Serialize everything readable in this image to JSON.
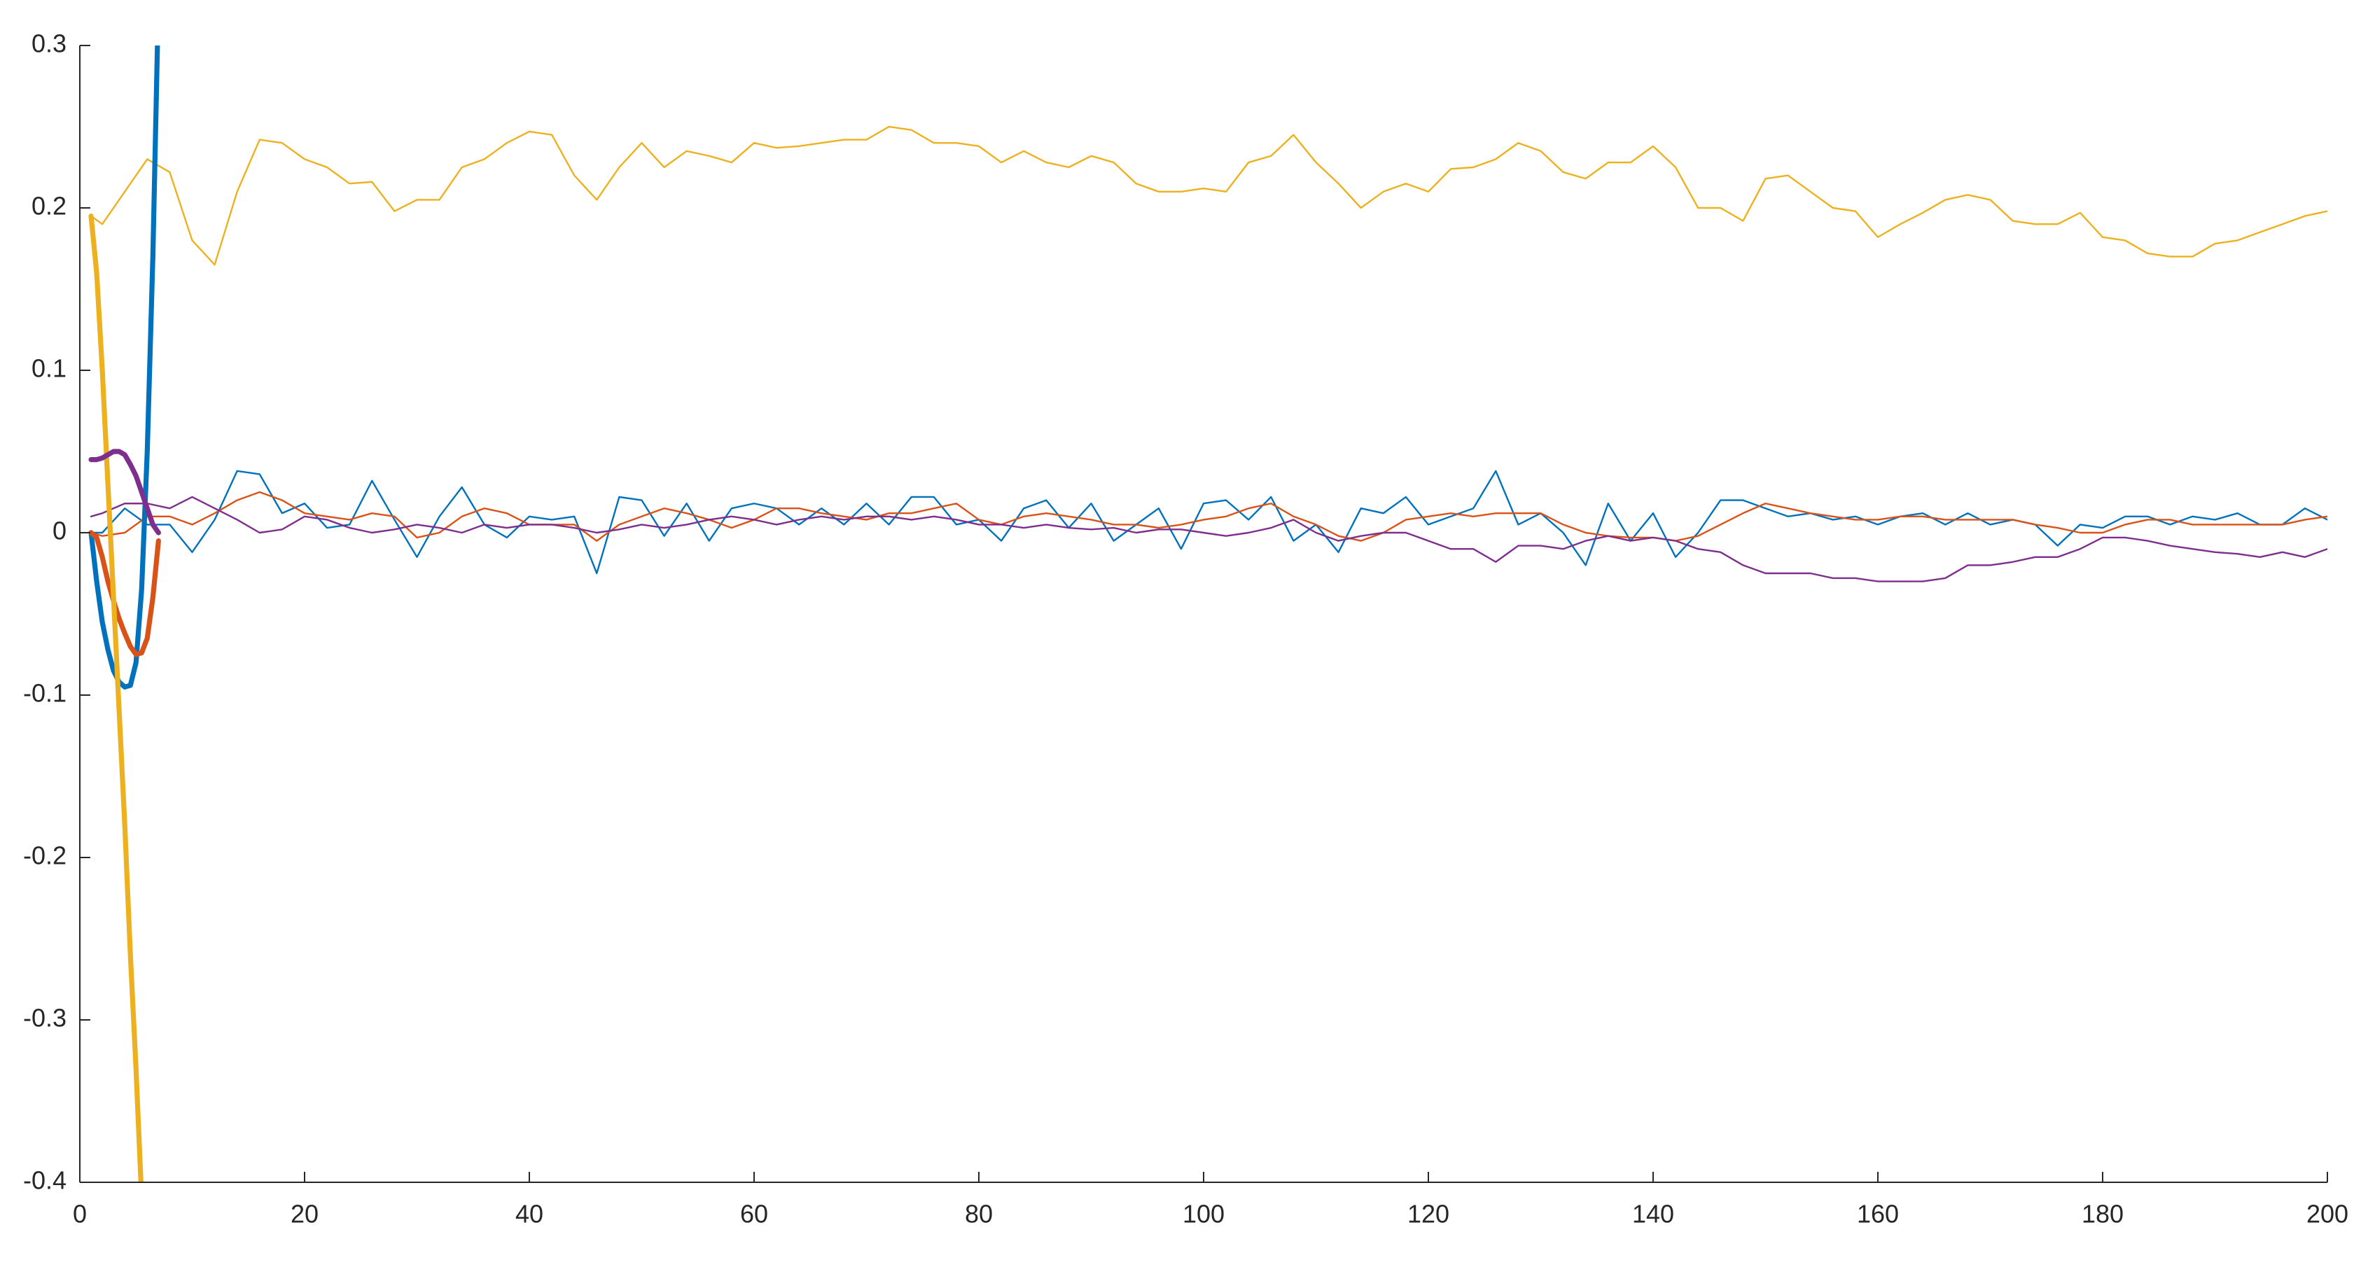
{
  "chart_data": {
    "type": "line",
    "xlim": [
      0,
      200
    ],
    "xticks": [
      0,
      20,
      40,
      60,
      80,
      100,
      120,
      140,
      160,
      180,
      200
    ],
    "ylim": [
      -0.4,
      0.3
    ],
    "yticks": [
      -0.4,
      -0.3,
      -0.2,
      -0.1,
      0,
      0.1,
      0.2,
      0.3
    ],
    "grid": false,
    "series": [
      {
        "color": "#EDB120",
        "line_width": 1,
        "x": [
          1,
          2,
          4,
          6,
          8,
          10,
          12,
          14,
          16,
          18,
          20,
          22,
          24,
          26,
          28,
          30,
          32,
          34,
          36,
          38,
          40,
          42,
          44,
          46,
          48,
          50,
          52,
          54,
          56,
          58,
          60,
          62,
          64,
          66,
          68,
          70,
          72,
          74,
          76,
          78,
          80,
          82,
          84,
          86,
          88,
          90,
          92,
          94,
          96,
          98,
          100,
          102,
          104,
          106,
          108,
          110,
          112,
          114,
          116,
          118,
          120,
          122,
          124,
          126,
          128,
          130,
          132,
          134,
          136,
          138,
          140,
          142,
          144,
          146,
          148,
          150,
          152,
          154,
          156,
          158,
          160,
          162,
          164,
          166,
          168,
          170,
          172,
          174,
          176,
          178,
          180,
          182,
          184,
          186,
          188,
          190,
          192,
          194,
          196,
          198,
          200
        ],
        "values": [
          0.195,
          0.19,
          0.21,
          0.23,
          0.222,
          0.18,
          0.165,
          0.21,
          0.242,
          0.24,
          0.23,
          0.225,
          0.215,
          0.216,
          0.198,
          0.205,
          0.205,
          0.225,
          0.23,
          0.24,
          0.247,
          0.245,
          0.22,
          0.205,
          0.225,
          0.24,
          0.225,
          0.235,
          0.232,
          0.228,
          0.24,
          0.237,
          0.238,
          0.24,
          0.242,
          0.242,
          0.25,
          0.248,
          0.24,
          0.24,
          0.238,
          0.228,
          0.235,
          0.228,
          0.225,
          0.232,
          0.228,
          0.215,
          0.21,
          0.21,
          0.212,
          0.21,
          0.228,
          0.232,
          0.245,
          0.228,
          0.215,
          0.2,
          0.21,
          0.215,
          0.21,
          0.224,
          0.225,
          0.23,
          0.24,
          0.235,
          0.222,
          0.218,
          0.228,
          0.228,
          0.238,
          0.225,
          0.2,
          0.2,
          0.192,
          0.218,
          0.22,
          0.21,
          0.2,
          0.198,
          0.182,
          0.19,
          0.197,
          0.205,
          0.208,
          0.205,
          0.192,
          0.19,
          0.19,
          0.197,
          0.182,
          0.18,
          0.172,
          0.17,
          0.17,
          0.178,
          0.18,
          0.185,
          0.19,
          0.195,
          0.198
        ]
      },
      {
        "color": "#0072BD",
        "line_width": 1,
        "x": [
          1,
          2,
          4,
          6,
          8,
          10,
          12,
          14,
          16,
          18,
          20,
          22,
          24,
          26,
          28,
          30,
          32,
          34,
          36,
          38,
          40,
          42,
          44,
          46,
          48,
          50,
          52,
          54,
          56,
          58,
          60,
          62,
          64,
          66,
          68,
          70,
          72,
          74,
          76,
          78,
          80,
          82,
          84,
          86,
          88,
          90,
          92,
          94,
          96,
          98,
          100,
          102,
          104,
          106,
          108,
          110,
          112,
          114,
          116,
          118,
          120,
          122,
          124,
          126,
          128,
          130,
          132,
          134,
          136,
          138,
          140,
          142,
          144,
          146,
          148,
          150,
          152,
          154,
          156,
          158,
          160,
          162,
          164,
          166,
          168,
          170,
          172,
          174,
          176,
          178,
          180,
          182,
          184,
          186,
          188,
          190,
          192,
          194,
          196,
          198,
          200
        ],
        "values": [
          0,
          0,
          0.015,
          0.005,
          0.005,
          -0.012,
          0.008,
          0.038,
          0.036,
          0.012,
          0.018,
          0.003,
          0.005,
          0.032,
          0.008,
          -0.015,
          0.01,
          0.028,
          0.005,
          -0.003,
          0.01,
          0.008,
          0.01,
          -0.025,
          0.022,
          0.02,
          -0.002,
          0.018,
          -0.005,
          0.015,
          0.018,
          0.015,
          0.005,
          0.015,
          0.005,
          0.018,
          0.005,
          0.022,
          0.022,
          0.005,
          0.008,
          -0.005,
          0.015,
          0.02,
          0.003,
          0.018,
          -0.005,
          0.005,
          0.015,
          -0.01,
          0.018,
          0.02,
          0.008,
          0.022,
          -0.005,
          0.005,
          -0.012,
          0.015,
          0.012,
          0.022,
          0.005,
          0.01,
          0.015,
          0.038,
          0.005,
          0.012,
          0,
          -0.02,
          0.018,
          -0.005,
          0.012,
          -0.015,
          0,
          0.02,
          0.02,
          0.015,
          0.01,
          0.012,
          0.008,
          0.01,
          0.005,
          0.01,
          0.012,
          0.005,
          0.012,
          0.005,
          0.008,
          0.005,
          -0.008,
          0.005,
          0.003,
          0.01,
          0.01,
          0.005,
          0.01,
          0.008,
          0.012,
          0.005,
          0.005,
          0.015,
          0.008
        ]
      },
      {
        "color": "#D95319",
        "line_width": 1,
        "x": [
          1,
          2,
          4,
          6,
          8,
          10,
          12,
          14,
          16,
          18,
          20,
          22,
          24,
          26,
          28,
          30,
          32,
          34,
          36,
          38,
          40,
          42,
          44,
          46,
          48,
          50,
          52,
          54,
          56,
          58,
          60,
          62,
          64,
          66,
          68,
          70,
          72,
          74,
          76,
          78,
          80,
          82,
          84,
          86,
          88,
          90,
          92,
          94,
          96,
          98,
          100,
          102,
          104,
          106,
          108,
          110,
          112,
          114,
          116,
          118,
          120,
          122,
          124,
          126,
          128,
          130,
          132,
          134,
          136,
          138,
          140,
          142,
          144,
          146,
          148,
          150,
          152,
          154,
          156,
          158,
          160,
          162,
          164,
          166,
          168,
          170,
          172,
          174,
          176,
          178,
          180,
          182,
          184,
          186,
          188,
          190,
          192,
          194,
          196,
          198,
          200
        ],
        "values": [
          0,
          -0.002,
          0,
          0.01,
          0.01,
          0.005,
          0.012,
          0.02,
          0.025,
          0.02,
          0.012,
          0.01,
          0.008,
          0.012,
          0.01,
          -0.003,
          0,
          0.01,
          0.015,
          0.012,
          0.005,
          0.005,
          0.005,
          -0.005,
          0.005,
          0.01,
          0.015,
          0.012,
          0.008,
          0.003,
          0.008,
          0.015,
          0.015,
          0.012,
          0.01,
          0.008,
          0.012,
          0.012,
          0.015,
          0.018,
          0.008,
          0.005,
          0.01,
          0.012,
          0.01,
          0.008,
          0.005,
          0.005,
          0.003,
          0.005,
          0.008,
          0.01,
          0.015,
          0.018,
          0.01,
          0.005,
          -0.002,
          -0.005,
          0,
          0.008,
          0.01,
          0.012,
          0.01,
          0.012,
          0.012,
          0.012,
          0.005,
          0,
          -0.002,
          -0.003,
          -0.003,
          -0.005,
          -0.002,
          0.005,
          0.012,
          0.018,
          0.015,
          0.012,
          0.01,
          0.008,
          0.008,
          0.01,
          0.01,
          0.008,
          0.008,
          0.008,
          0.008,
          0.005,
          0.003,
          0,
          0,
          0.005,
          0.008,
          0.008,
          0.005,
          0.005,
          0.005,
          0.005,
          0.005,
          0.008,
          0.01
        ]
      },
      {
        "color": "#7E2F8E",
        "line_width": 1,
        "x": [
          1,
          2,
          4,
          6,
          8,
          10,
          12,
          14,
          16,
          18,
          20,
          22,
          24,
          26,
          28,
          30,
          32,
          34,
          36,
          38,
          40,
          42,
          44,
          46,
          48,
          50,
          52,
          54,
          56,
          58,
          60,
          62,
          64,
          66,
          68,
          70,
          72,
          74,
          76,
          78,
          80,
          82,
          84,
          86,
          88,
          90,
          92,
          94,
          96,
          98,
          100,
          102,
          104,
          106,
          108,
          110,
          112,
          114,
          116,
          118,
          120,
          122,
          124,
          126,
          128,
          130,
          132,
          134,
          136,
          138,
          140,
          142,
          144,
          146,
          148,
          150,
          152,
          154,
          156,
          158,
          160,
          162,
          164,
          166,
          168,
          170,
          172,
          174,
          176,
          178,
          180,
          182,
          184,
          186,
          188,
          190,
          192,
          194,
          196,
          198,
          200
        ],
        "values": [
          0.01,
          0.012,
          0.018,
          0.018,
          0.015,
          0.022,
          0.015,
          0.008,
          0,
          0.002,
          0.01,
          0.008,
          0.003,
          0,
          0.002,
          0.005,
          0.003,
          0,
          0.005,
          0.003,
          0.005,
          0.005,
          0.003,
          0,
          0.002,
          0.005,
          0.003,
          0.005,
          0.008,
          0.01,
          0.008,
          0.005,
          0.008,
          0.01,
          0.008,
          0.01,
          0.01,
          0.008,
          0.01,
          0.008,
          0.005,
          0.005,
          0.003,
          0.005,
          0.003,
          0.002,
          0.003,
          0,
          0.002,
          0.002,
          0,
          -0.002,
          0,
          0.003,
          0.008,
          0,
          -0.005,
          -0.002,
          0,
          0,
          -0.005,
          -0.01,
          -0.01,
          -0.018,
          -0.008,
          -0.008,
          -0.01,
          -0.005,
          -0.002,
          -0.005,
          -0.003,
          -0.005,
          -0.01,
          -0.012,
          -0.02,
          -0.025,
          -0.025,
          -0.025,
          -0.028,
          -0.028,
          -0.03,
          -0.03,
          -0.03,
          -0.028,
          -0.02,
          -0.02,
          -0.018,
          -0.015,
          -0.015,
          -0.01,
          -0.003,
          -0.003,
          -0.005,
          -0.008,
          -0.01,
          -0.012,
          -0.013,
          -0.015,
          -0.012,
          -0.015,
          -0.01
        ]
      },
      {
        "color": "#0072BD",
        "line_width": 3,
        "x": [
          1,
          1.5,
          2,
          2.5,
          3,
          3.5,
          4,
          4.5,
          5,
          5.5,
          6,
          6.5,
          7
        ],
        "values": [
          0,
          -0.03,
          -0.055,
          -0.072,
          -0.085,
          -0.092,
          -0.095,
          -0.094,
          -0.08,
          -0.035,
          0.05,
          0.17,
          0.33
        ]
      },
      {
        "color": "#D95319",
        "line_width": 3,
        "x": [
          1,
          1.5,
          2,
          2.5,
          3,
          3.5,
          4,
          4.5,
          5,
          5.5,
          6,
          6.5,
          7
        ],
        "values": [
          0,
          -0.003,
          -0.015,
          -0.03,
          -0.042,
          -0.053,
          -0.062,
          -0.07,
          -0.075,
          -0.074,
          -0.065,
          -0.04,
          -0.005
        ]
      },
      {
        "color": "#EDB120",
        "line_width": 3,
        "x": [
          1,
          1.5,
          2,
          2.5,
          3,
          3.5,
          4,
          4.5,
          5,
          5.5
        ],
        "values": [
          0.195,
          0.16,
          0.1,
          0.03,
          -0.04,
          -0.11,
          -0.18,
          -0.26,
          -0.33,
          -0.41
        ]
      },
      {
        "color": "#7E2F8E",
        "line_width": 3,
        "x": [
          1,
          1.5,
          2,
          2.5,
          3,
          3.5,
          4,
          4.5,
          5,
          5.5,
          6,
          6.5,
          7
        ],
        "values": [
          0.045,
          0.045,
          0.046,
          0.048,
          0.05,
          0.05,
          0.048,
          0.042,
          0.035,
          0.025,
          0.015,
          0.005,
          0
        ]
      }
    ]
  }
}
